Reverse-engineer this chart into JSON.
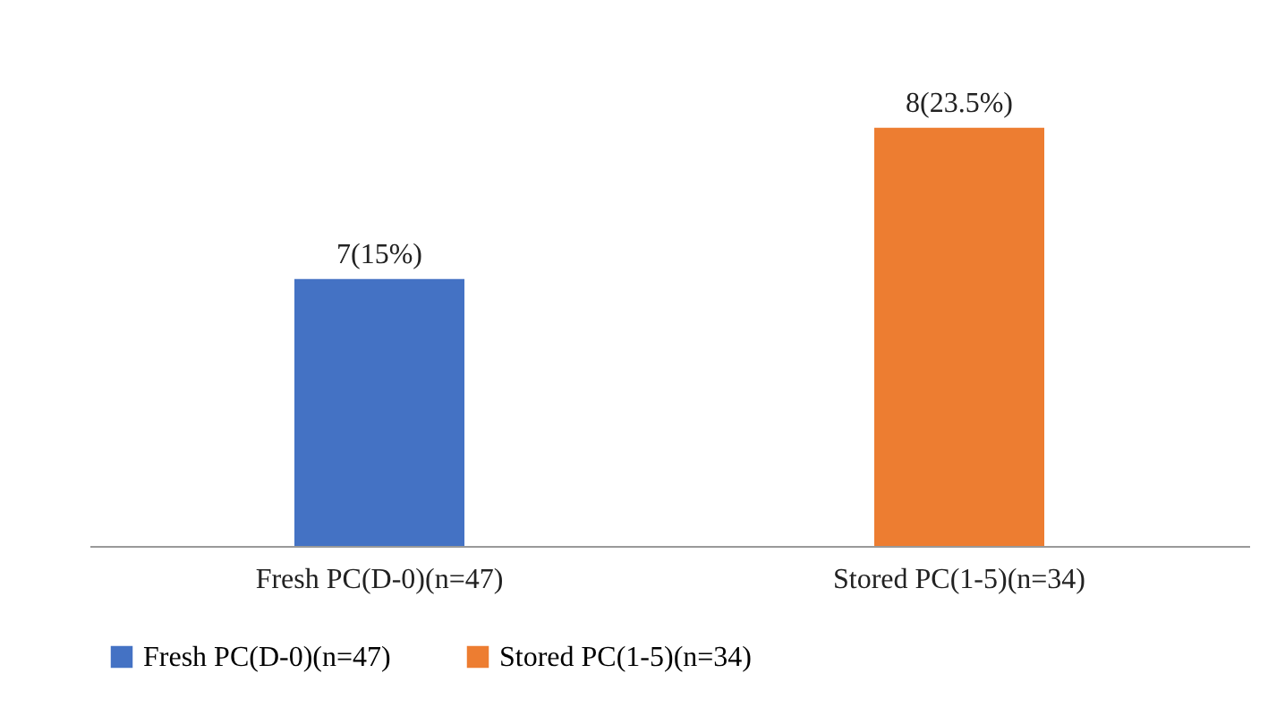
{
  "chart_data": {
    "type": "bar",
    "categories": [
      "Fresh PC(D-0)(n=47)",
      "Stored PC(1-5)(n=34)"
    ],
    "series": [
      {
        "name": "Fresh PC(D-0)(n=47)",
        "color": "#4472c4",
        "values": [
          15,
          null
        ],
        "value_labels": [
          "7(15%)",
          null
        ]
      },
      {
        "name": "Stored PC(1-5)(n=34)",
        "color": "#ed7d31",
        "values": [
          null,
          23.5
        ],
        "value_labels": [
          null,
          "8(23.5%)"
        ]
      }
    ],
    "legend": "bottom"
  }
}
